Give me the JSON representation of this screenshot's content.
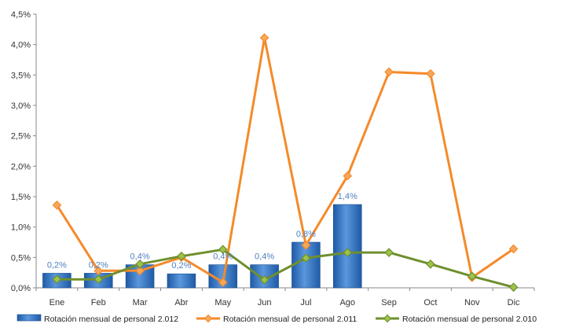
{
  "chart_data": {
    "type": "bar",
    "categories": [
      "Ene",
      "Feb",
      "Mar",
      "Abr",
      "May",
      "Jun",
      "Jul",
      "Ago",
      "Sep",
      "Oct",
      "Nov",
      "Dic"
    ],
    "yticks": [
      "0,0%",
      "0,5%",
      "1,0%",
      "1,5%",
      "2,0%",
      "2,5%",
      "3,0%",
      "3,5%",
      "4,0%",
      "4,5%"
    ],
    "ylim": [
      0,
      4.5
    ],
    "grid": false,
    "legend_position": "bottom",
    "series": [
      {
        "name": "Rotación mensual de personal 2.012",
        "type": "bar",
        "color": "#3a78c9",
        "values": [
          0.24,
          0.24,
          0.38,
          0.23,
          0.38,
          0.38,
          0.75,
          1.37,
          null,
          null,
          null,
          null
        ],
        "data_labels": [
          "0,2%",
          "0,2%",
          "0,4%",
          "0,2%",
          "0,4%",
          "0,4%",
          "0,8%",
          "1,4%",
          "",
          "",
          "",
          ""
        ]
      },
      {
        "name": "Rotación mensual de personal 2.011",
        "type": "line",
        "color": "#f58a2a",
        "marker_color": "#f7a85a",
        "values": [
          1.36,
          0.28,
          0.28,
          0.5,
          0.09,
          4.11,
          0.7,
          1.84,
          3.55,
          3.52,
          0.17,
          0.64
        ]
      },
      {
        "name": "Rotación mensual de personal 2.010",
        "type": "line",
        "color": "#6f8f2e",
        "marker_color": "#9cc24a",
        "values": [
          0.14,
          0.14,
          0.39,
          0.52,
          0.63,
          0.13,
          0.49,
          0.58,
          0.58,
          0.39,
          0.19,
          0.01
        ]
      }
    ]
  }
}
